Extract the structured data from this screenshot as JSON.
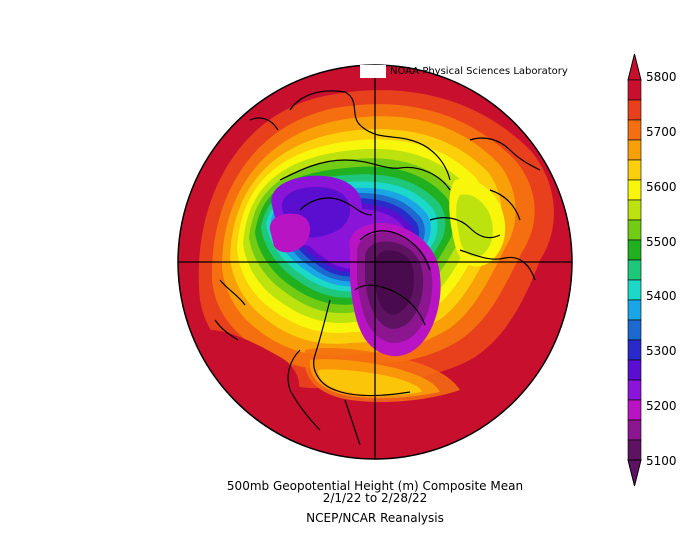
{
  "credit": "NOAA Physical Sciences Laboratory",
  "caption": {
    "line1": "500mb Geopotential Height (m) Composite Mean",
    "line2": "2/1/22  to 2/28/22",
    "line3": "NCEP/NCAR Reanalysis"
  },
  "colorbar": {
    "levels": [
      "5800",
      "5700",
      "5600",
      "5500",
      "5400",
      "5300",
      "5200",
      "5100"
    ],
    "colors": [
      "#c8102e",
      "#e8401c",
      "#f56f10",
      "#f99f08",
      "#fbcf0a",
      "#f8f70b",
      "#bde30f",
      "#72cc13",
      "#20b020",
      "#1ec77a",
      "#1cd8c8",
      "#1aa6e6",
      "#1c6ad0",
      "#2a2acb",
      "#5a0fd0",
      "#8a14d8",
      "#b814c4",
      "#8c1690",
      "#5e1262"
    ]
  },
  "colors": {
    "warm": "#c8102e",
    "cold": "#4a0a4e"
  }
}
